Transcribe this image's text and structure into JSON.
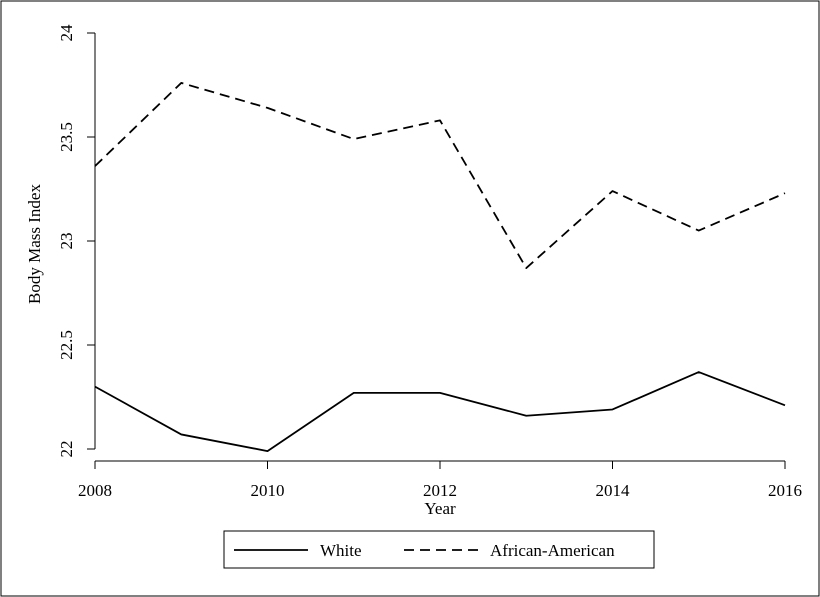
{
  "chart_data": {
    "type": "line",
    "title": "",
    "xlabel": "Year",
    "ylabel": "Body Mass Index",
    "x": [
      2008,
      2009,
      2010,
      2011,
      2012,
      2013,
      2014,
      2015,
      2016
    ],
    "xlim": [
      2008,
      2016
    ],
    "ylim": [
      22,
      24
    ],
    "xticks": [
      2008,
      2010,
      2012,
      2014,
      2016
    ],
    "xtick_labels": [
      "2008",
      "2010",
      "2012",
      "2014",
      "2016"
    ],
    "yticks": [
      22,
      22.5,
      23,
      23.5,
      24
    ],
    "ytick_labels": [
      "22",
      "22.5",
      "23",
      "23.5",
      "24"
    ],
    "grid": false,
    "legend_position": "bottom",
    "series": [
      {
        "name": "White",
        "line_style": "solid",
        "color": "#000000",
        "values": [
          22.3,
          22.07,
          21.99,
          22.27,
          22.27,
          22.16,
          22.19,
          22.37,
          22.21
        ]
      },
      {
        "name": "African-American",
        "line_style": "dashed",
        "color": "#000000",
        "values": [
          23.36,
          23.76,
          23.64,
          23.49,
          23.58,
          22.87,
          23.24,
          23.05,
          23.23
        ]
      }
    ]
  }
}
